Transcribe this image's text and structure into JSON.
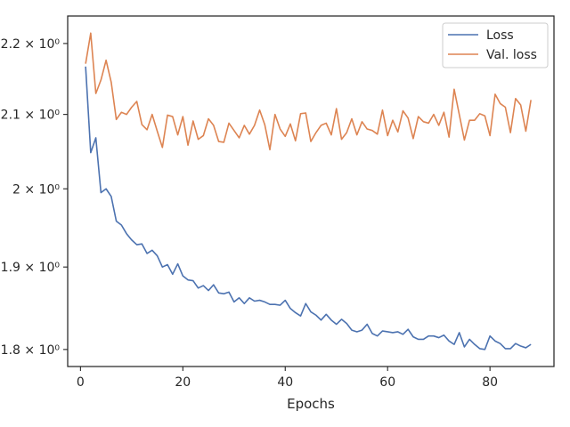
{
  "chart_data": {
    "type": "line",
    "xlabel": "Epochs",
    "ylabel": "",
    "yscale": "log",
    "xlim": [
      -2.5,
      92.5
    ],
    "ylim": [
      1.78,
      2.24
    ],
    "xticks": [
      0,
      20,
      40,
      60,
      80
    ],
    "xtick_labels": [
      "0",
      "20",
      "40",
      "60",
      "80"
    ],
    "yticks": [
      1.8,
      1.9,
      2.0,
      2.1,
      2.2
    ],
    "ytick_labels": [
      "1.8 × 10⁰",
      "1.9 × 10⁰",
      "2 × 10⁰",
      "2.1 × 10⁰",
      "2.2 × 10⁰"
    ],
    "grid": false,
    "legend_position": "top-right",
    "x": [
      1,
      2,
      3,
      4,
      5,
      6,
      7,
      8,
      9,
      10,
      11,
      12,
      13,
      14,
      15,
      16,
      17,
      18,
      19,
      20,
      21,
      22,
      23,
      24,
      25,
      26,
      27,
      28,
      29,
      30,
      31,
      32,
      33,
      34,
      35,
      36,
      37,
      38,
      39,
      40,
      41,
      42,
      43,
      44,
      45,
      46,
      47,
      48,
      49,
      50,
      51,
      52,
      53,
      54,
      55,
      56,
      57,
      58,
      59,
      60,
      61,
      62,
      63,
      64,
      65,
      66,
      67,
      68,
      69,
      70,
      71,
      72,
      73,
      74,
      75,
      76,
      77,
      78,
      79,
      80,
      81,
      82,
      83,
      84,
      85,
      86,
      87,
      88
    ],
    "series": [
      {
        "name": "Loss",
        "color": "#4c72b0",
        "values": [
          2.167,
          2.048,
          2.068,
          1.995,
          2.0,
          1.99,
          1.958,
          1.953,
          1.942,
          1.934,
          1.928,
          1.929,
          1.917,
          1.921,
          1.914,
          1.9,
          1.903,
          1.891,
          1.904,
          1.889,
          1.884,
          1.883,
          1.874,
          1.877,
          1.871,
          1.878,
          1.868,
          1.867,
          1.869,
          1.857,
          1.862,
          1.855,
          1.862,
          1.858,
          1.859,
          1.857,
          1.854,
          1.854,
          1.853,
          1.859,
          1.849,
          1.844,
          1.84,
          1.855,
          1.845,
          1.841,
          1.835,
          1.842,
          1.835,
          1.83,
          1.836,
          1.831,
          1.823,
          1.821,
          1.823,
          1.83,
          1.819,
          1.816,
          1.822,
          1.821,
          1.82,
          1.821,
          1.818,
          1.824,
          1.815,
          1.812,
          1.812,
          1.816,
          1.816,
          1.814,
          1.817,
          1.81,
          1.806,
          1.82,
          1.803,
          1.812,
          1.806,
          1.801,
          1.8,
          1.816,
          1.81,
          1.807,
          1.801,
          1.801,
          1.807,
          1.804,
          1.802,
          1.806
        ]
      },
      {
        "name": "Val. loss",
        "color": "#dd8452",
        "values": [
          2.171,
          2.215,
          2.129,
          2.148,
          2.176,
          2.145,
          2.093,
          2.103,
          2.1,
          2.11,
          2.118,
          2.086,
          2.079,
          2.1,
          2.077,
          2.055,
          2.099,
          2.097,
          2.072,
          2.097,
          2.058,
          2.091,
          2.066,
          2.071,
          2.094,
          2.085,
          2.063,
          2.062,
          2.088,
          2.078,
          2.068,
          2.085,
          2.073,
          2.085,
          2.106,
          2.086,
          2.052,
          2.1,
          2.08,
          2.07,
          2.087,
          2.064,
          2.101,
          2.102,
          2.063,
          2.075,
          2.085,
          2.088,
          2.072,
          2.108,
          2.066,
          2.075,
          2.094,
          2.072,
          2.09,
          2.08,
          2.078,
          2.073,
          2.106,
          2.071,
          2.092,
          2.076,
          2.105,
          2.095,
          2.067,
          2.097,
          2.09,
          2.088,
          2.1,
          2.085,
          2.103,
          2.069,
          2.135,
          2.1,
          2.065,
          2.092,
          2.092,
          2.101,
          2.098,
          2.071,
          2.128,
          2.115,
          2.11,
          2.075,
          2.122,
          2.113,
          2.077,
          2.12
        ]
      }
    ]
  }
}
